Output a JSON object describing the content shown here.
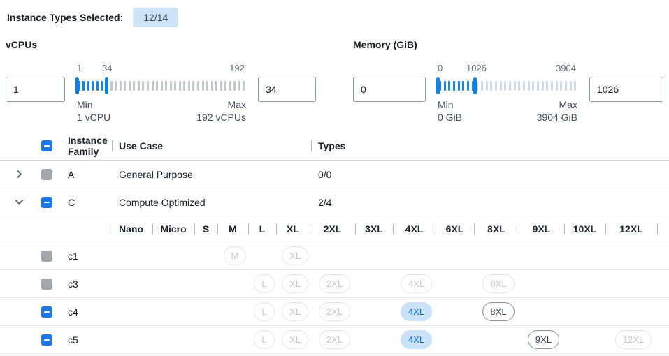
{
  "header": {
    "label": "Instance Types Selected:",
    "badge": "12/14"
  },
  "filters": {
    "vcpus": {
      "title": "vCPUs",
      "input_left": "1",
      "input_right": "34",
      "min": 1,
      "max": 192,
      "value": 34,
      "scale_min": "1",
      "scale_value": "34",
      "scale_max": "192",
      "min_caption": "Min",
      "min_detail": "1 vCPU",
      "max_caption": "Max",
      "max_detail": "192 vCPUs"
    },
    "memory": {
      "title": "Memory (GiB)",
      "input_left": "0",
      "input_right": "1026",
      "min": 0,
      "max": 3904,
      "value": 1026,
      "scale_min": "0",
      "scale_value": "1026",
      "scale_max": "3904",
      "min_caption": "Min",
      "min_detail": "0 GiB",
      "max_caption": "Max",
      "max_detail": "3904 GiB"
    }
  },
  "table": {
    "columns": {
      "family": "Instance Family",
      "use_case": "Use Case",
      "types": "Types"
    },
    "select_all_state": "indeterminate",
    "family_rows": [
      {
        "family": "A",
        "use_case": "General Purpose",
        "types": "0/0",
        "expanded": false,
        "checkbox": "disabled"
      },
      {
        "family": "C",
        "use_case": "Compute Optimized",
        "types": "2/4",
        "expanded": true,
        "checkbox": "indeterminate"
      }
    ],
    "sizes": [
      "Nano",
      "Micro",
      "S",
      "M",
      "L",
      "XL",
      "2XL",
      "3XL",
      "4XL",
      "6XL",
      "8XL",
      "9XL",
      "10XL",
      "12XL"
    ],
    "type_rows": [
      {
        "label": "c1",
        "checkbox": "disabled",
        "pills": {
          "M": "disabled",
          "XL": "disabled"
        }
      },
      {
        "label": "c3",
        "checkbox": "disabled",
        "pills": {
          "L": "disabled",
          "XL": "disabled",
          "2XL": "disabled",
          "4XL": "disabled",
          "8XL": "disabled"
        }
      },
      {
        "label": "c4",
        "checkbox": "indeterminate",
        "pills": {
          "L": "disabled",
          "XL": "disabled",
          "2XL": "disabled",
          "4XL": "selected",
          "8XL": "enabled"
        }
      },
      {
        "label": "c5",
        "checkbox": "indeterminate",
        "pills": {
          "L": "disabled",
          "XL": "disabled",
          "2XL": "disabled",
          "4XL": "selected",
          "9XL": "enabled",
          "12XL": "disabled"
        }
      }
    ]
  },
  "colors": {
    "accent": "#1a77e3",
    "badge-bg": "#cde3f8",
    "pill-sel-bg": "#c9e2f9",
    "pill-sel-text": "#0a72d0",
    "tick-blue": "#1086e6"
  }
}
